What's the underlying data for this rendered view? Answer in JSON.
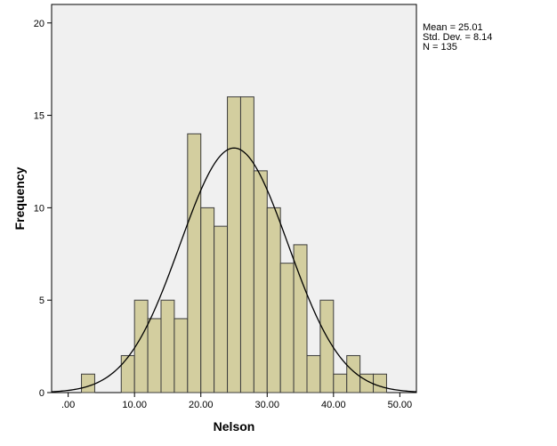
{
  "chart_data": {
    "type": "bar",
    "subtype": "histogram",
    "xlabel": "Nelson",
    "ylabel": "Frequency",
    "xlim": [
      -2.5,
      52.5
    ],
    "ylim": [
      0,
      21
    ],
    "x_ticks": [
      0,
      10,
      20,
      30,
      40,
      50
    ],
    "x_tick_labels": [
      ".00",
      "10.00",
      "20.00",
      "30.00",
      "40.00",
      "50.00"
    ],
    "y_ticks": [
      0,
      5,
      10,
      15,
      20
    ],
    "y_tick_labels": [
      "0",
      "5",
      "10",
      "15",
      "20"
    ],
    "bin_width": 2,
    "bins": [
      {
        "start": 2,
        "end": 4,
        "count": 1
      },
      {
        "start": 8,
        "end": 10,
        "count": 2
      },
      {
        "start": 10,
        "end": 12,
        "count": 5
      },
      {
        "start": 12,
        "end": 14,
        "count": 4
      },
      {
        "start": 14,
        "end": 16,
        "count": 5
      },
      {
        "start": 16,
        "end": 18,
        "count": 4
      },
      {
        "start": 18,
        "end": 20,
        "count": 14
      },
      {
        "start": 20,
        "end": 22,
        "count": 10
      },
      {
        "start": 22,
        "end": 24,
        "count": 9
      },
      {
        "start": 24,
        "end": 26,
        "count": 16
      },
      {
        "start": 26,
        "end": 28,
        "count": 16
      },
      {
        "start": 28,
        "end": 30,
        "count": 12
      },
      {
        "start": 30,
        "end": 32,
        "count": 10
      },
      {
        "start": 32,
        "end": 34,
        "count": 7
      },
      {
        "start": 34,
        "end": 36,
        "count": 8
      },
      {
        "start": 36,
        "end": 38,
        "count": 2
      },
      {
        "start": 38,
        "end": 40,
        "count": 5
      },
      {
        "start": 40,
        "end": 42,
        "count": 1
      },
      {
        "start": 42,
        "end": 44,
        "count": 2
      },
      {
        "start": 44,
        "end": 46,
        "count": 1
      },
      {
        "start": 46,
        "end": 48,
        "count": 1
      }
    ],
    "normal_curve": {
      "mean": 25.01,
      "sd": 8.14,
      "n": 135
    },
    "stats": {
      "mean_text": "Mean = 25.01",
      "sd_text": "Std. Dev. = 8.14",
      "n_text": "N = 135"
    },
    "colors": {
      "bar_fill": "#d3ce9f",
      "bar_stroke": "#3c3c3c",
      "plot_background": "#f0f0f0",
      "curve": "#000000"
    }
  }
}
